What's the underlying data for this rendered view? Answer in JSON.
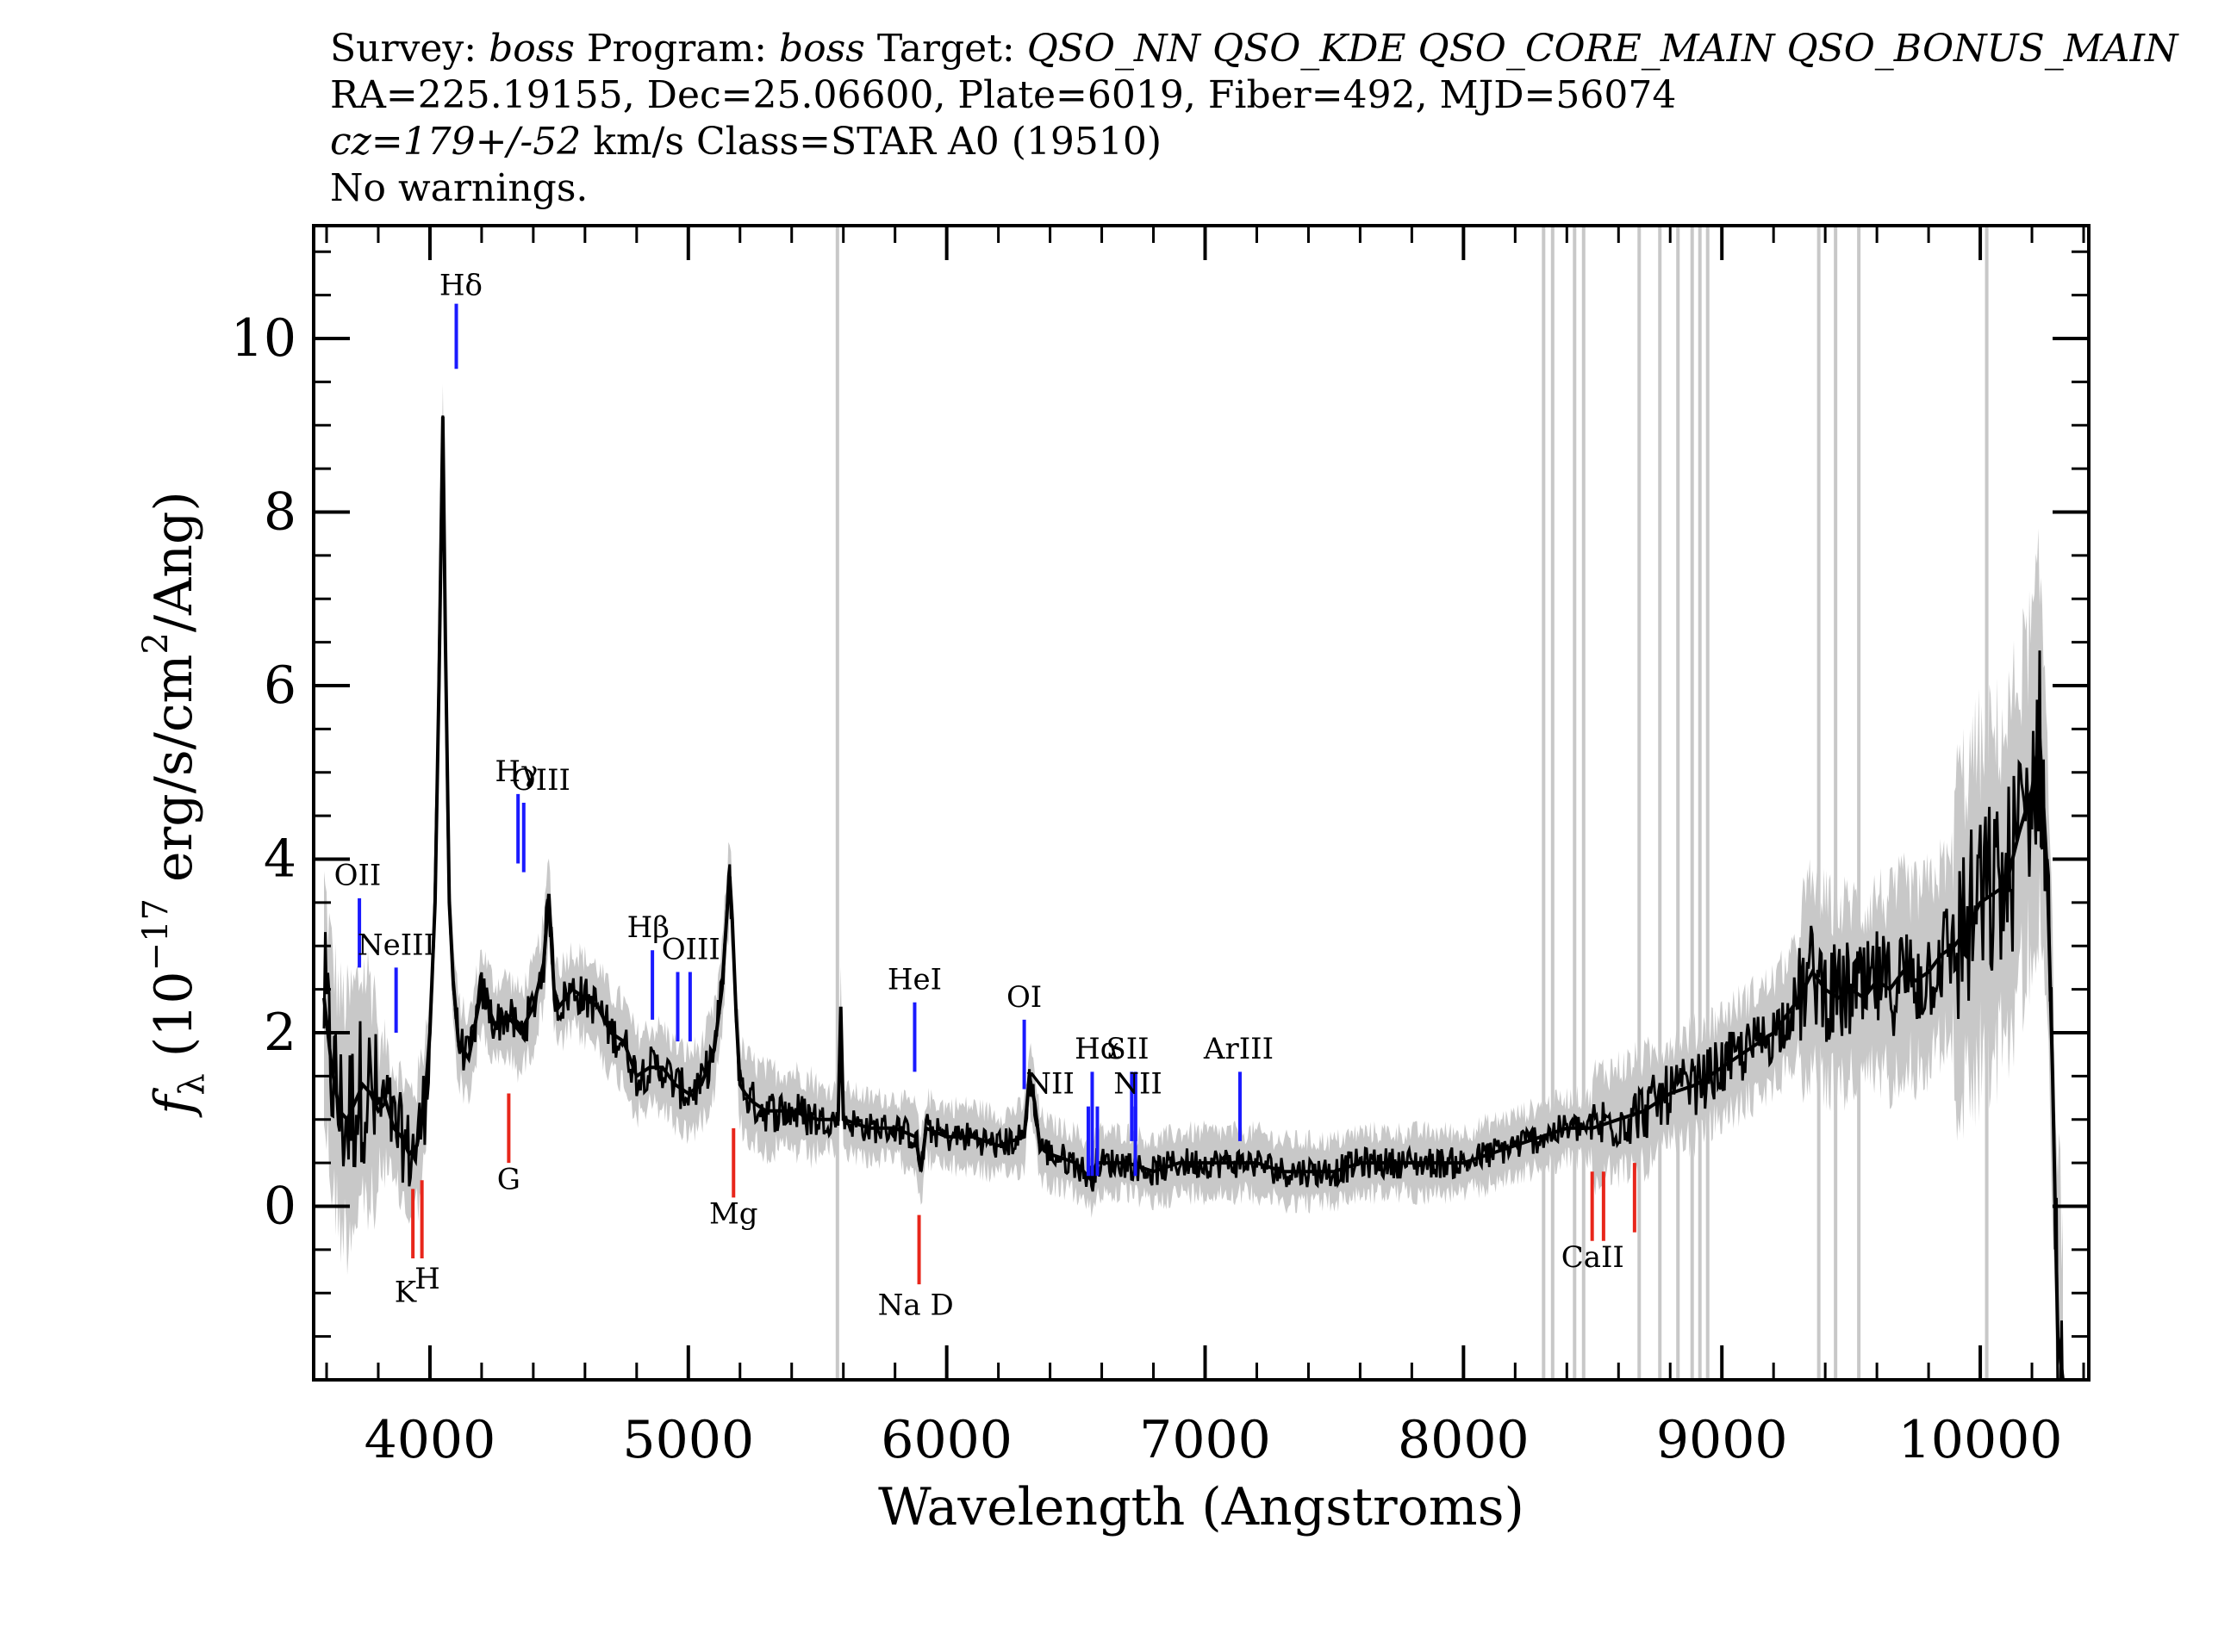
{
  "header": {
    "line1": [
      {
        "text": "Survey: ",
        "italic": false
      },
      {
        "text": "boss",
        "italic": true
      },
      {
        "text": " Program: ",
        "italic": false
      },
      {
        "text": "boss",
        "italic": true
      },
      {
        "text": " Target: ",
        "italic": false
      },
      {
        "text": "QSO_NN QSO_KDE QSO_CORE_MAIN QSO_BONUS_MAIN",
        "italic": true
      }
    ],
    "line2": "RA=225.19155, Dec=25.06600, Plate=6019, Fiber=492, MJD=56074",
    "line3": [
      {
        "text": "cz=179+/-52",
        "italic": true
      },
      {
        "text": " km/s Class=STAR A0 (19510)",
        "italic": false
      }
    ],
    "line4": "No warnings."
  },
  "chart_data": {
    "type": "line",
    "xlabel": "Wavelength (Angstroms)",
    "ylabel_parts": {
      "f": "f",
      "lambda": "λ",
      "open": " (10",
      "exp": "−17",
      "mid": " erg/s/cm",
      "sq": "2",
      "close": "/Ang)"
    },
    "xlim": [
      3550,
      10420
    ],
    "ylim": [
      -2.0,
      11.3
    ],
    "xticks": [
      4000,
      5000,
      6000,
      7000,
      8000,
      9000,
      10000
    ],
    "xtick_labels": [
      "4000",
      "5000",
      "6000",
      "7000",
      "8000",
      "9000",
      "10000"
    ],
    "yticks": [
      0,
      2,
      4,
      6,
      8,
      10
    ],
    "ytick_labels": [
      "0",
      "2",
      "4",
      "6",
      "8",
      "10"
    ],
    "grid": false,
    "colors": {
      "flux": "#000000",
      "error": "#c8c8c8",
      "emission": "#1a1aff",
      "absorption": "#e8261b",
      "text": "#000000"
    },
    "series": [
      {
        "role": "smoothed flux",
        "x": [
          3590,
          3620,
          3650,
          3680,
          3710,
          3740,
          3770,
          3800,
          3830,
          3860,
          3890,
          3920,
          3950,
          3980,
          4000,
          4020,
          4035,
          4050,
          4060,
          4075,
          4090,
          4110,
          4150,
          4200,
          4250,
          4300,
          4350,
          4400,
          4440,
          4460,
          4480,
          4500,
          4550,
          4600,
          4650,
          4700,
          4750,
          4800,
          4850,
          4900,
          4950,
          5000,
          5050,
          5100,
          5130,
          5150,
          5160,
          5170,
          5185,
          5200,
          5220,
          5250,
          5300,
          5400,
          5500,
          5580,
          5590,
          5600,
          5700,
          5800,
          5880,
          5900,
          5920,
          6000,
          6100,
          6200,
          6300,
          6320,
          6340,
          6360,
          6400,
          6500,
          6560,
          6580,
          6600,
          6700,
          6800,
          6900,
          7000,
          7100,
          7200,
          7300,
          7400,
          7500,
          7600,
          7700,
          7800,
          7900,
          8000,
          8100,
          8200,
          8300,
          8400,
          8500,
          8600,
          8700,
          8800,
          8900,
          9000,
          9100,
          9200,
          9250,
          9300,
          9350,
          9400,
          9450,
          9500,
          9550,
          9600,
          9650,
          9700,
          9750,
          9800,
          9850,
          9900,
          9950,
          10000,
          10050,
          10100,
          10150,
          10200,
          10230,
          10260,
          10280,
          10300,
          10320
        ],
        "y": [
          2.4,
          1.6,
          1.1,
          1.0,
          1.2,
          1.4,
          1.3,
          1.1,
          1.2,
          0.9,
          0.8,
          0.6,
          0.7,
          1.2,
          2.0,
          3.5,
          6.0,
          9.1,
          6.5,
          3.5,
          2.6,
          1.9,
          1.7,
          2.5,
          2.1,
          2.2,
          2.0,
          2.3,
          2.8,
          3.6,
          2.5,
          2.3,
          2.5,
          2.4,
          2.3,
          2.0,
          1.9,
          1.5,
          1.6,
          1.6,
          1.4,
          1.3,
          1.4,
          1.8,
          2.5,
          3.4,
          3.8,
          3.3,
          2.2,
          1.4,
          1.3,
          1.2,
          1.1,
          1.1,
          1.0,
          1.0,
          2.3,
          1.0,
          0.9,
          0.9,
          0.8,
          0.4,
          0.9,
          0.8,
          0.8,
          0.7,
          0.8,
          1.5,
          1.2,
          0.7,
          0.6,
          0.5,
          0.3,
          0.5,
          0.5,
          0.5,
          0.4,
          0.5,
          0.5,
          0.5,
          0.5,
          0.4,
          0.4,
          0.4,
          0.5,
          0.5,
          0.5,
          0.5,
          0.5,
          0.6,
          0.7,
          0.8,
          0.9,
          0.9,
          1.0,
          1.1,
          1.3,
          1.4,
          1.6,
          1.8,
          2.0,
          2.2,
          2.4,
          2.7,
          2.5,
          2.4,
          2.5,
          2.4,
          2.6,
          2.5,
          2.7,
          2.6,
          2.7,
          2.9,
          3.0,
          3.2,
          3.5,
          3.6,
          3.7,
          4.3,
          4.8,
          5.4,
          3.8,
          1.5,
          -1.5,
          -2.0
        ]
      }
    ],
    "masked_x": [
      5577,
      8310,
      8345,
      8430,
      8465,
      8680,
      8760,
      8830,
      8885,
      8915,
      8945,
      9375,
      9440,
      9530,
      10025
    ],
    "annotations": [
      {
        "label": "Hδ",
        "x": 4102,
        "kind": "emission",
        "y0": 9.65,
        "y1": 10.4,
        "lx": 4120,
        "ly": 10.5
      },
      {
        "label": "Hγ",
        "x": 4341,
        "kind": "emission",
        "y0": 3.95,
        "y1": 4.75,
        "lx": 4335,
        "ly": 4.9
      },
      {
        "label": "OIII",
        "x": 4363,
        "kind": "emission",
        "y0": 3.85,
        "y1": 4.65,
        "lx": 4430,
        "ly": 4.8
      },
      {
        "label": "OII",
        "x": 3727,
        "kind": "emission",
        "y0": 2.75,
        "y1": 3.55,
        "lx": 3720,
        "ly": 3.7
      },
      {
        "label": "NeIII",
        "x": 3869,
        "kind": "emission",
        "y0": 2.0,
        "y1": 2.75,
        "lx": 3870,
        "ly": 2.9
      },
      {
        "label": "Hβ",
        "x": 4861,
        "kind": "emission",
        "y0": 2.15,
        "y1": 2.95,
        "lx": 4845,
        "ly": 3.1
      },
      {
        "label": "OIII",
        "x": 4959,
        "kind": "emission",
        "y0": 1.9,
        "y1": 2.7,
        "lx": 5010,
        "ly": 2.85
      },
      {
        "label": "OIII",
        "x": 5007,
        "kind": "emission",
        "y0": 1.9,
        "y1": 2.7,
        "lx": "",
        "ly": ""
      },
      {
        "label": "HeI",
        "x": 5876,
        "kind": "emission",
        "y0": 1.55,
        "y1": 2.35,
        "lx": 5876,
        "ly": 2.5
      },
      {
        "label": "OI",
        "x": 6300,
        "kind": "emission",
        "y0": 1.35,
        "y1": 2.15,
        "lx": 6300,
        "ly": 2.3
      },
      {
        "label": "NII",
        "x": 6548,
        "kind": "emission",
        "y0": 0.35,
        "y1": 1.15,
        "lx": 6400,
        "ly": 1.3
      },
      {
        "label": "Hα",
        "x": 6563,
        "kind": "emission",
        "y0": 0.35,
        "y1": 1.55,
        "lx": 6583,
        "ly": 1.7
      },
      {
        "label": "NII",
        "x": 6583,
        "kind": "emission",
        "y0": 0.35,
        "y1": 1.15,
        "lx": "",
        "ly": ""
      },
      {
        "label": "SII",
        "x": 6716,
        "kind": "emission",
        "y0": 0.75,
        "y1": 1.55,
        "lx": 6700,
        "ly": 1.7
      },
      {
        "label": "SII",
        "x": 6731,
        "kind": "emission",
        "y0": 0.75,
        "y1": 1.55,
        "lx": "",
        "ly": ""
      },
      {
        "label": "NII",
        "x": 6730,
        "kind": "emission",
        "y0": 0.35,
        "y1": 1.15,
        "lx": 6740,
        "ly": 1.3
      },
      {
        "label": "ArIII",
        "x": 7135,
        "kind": "emission",
        "y0": 0.75,
        "y1": 1.55,
        "lx": 7130,
        "ly": 1.7
      },
      {
        "label": "K",
        "x": 3934,
        "kind": "absorption",
        "y0": -0.6,
        "y1": 0.2,
        "lx": 3905,
        "ly": -1.1
      },
      {
        "label": "H",
        "x": 3969,
        "kind": "absorption",
        "y0": -0.6,
        "y1": 0.3,
        "lx": 3990,
        "ly": -0.95
      },
      {
        "label": "G",
        "x": 4305,
        "kind": "absorption",
        "y0": 0.5,
        "y1": 1.3,
        "lx": 4305,
        "ly": 0.2
      },
      {
        "label": "Mg",
        "x": 5175,
        "kind": "absorption",
        "y0": 0.1,
        "y1": 0.9,
        "lx": 5175,
        "ly": -0.2
      },
      {
        "label": "Na D",
        "x": 5893,
        "kind": "absorption",
        "y0": -0.9,
        "y1": -0.1,
        "lx": 5880,
        "ly": -1.25
      },
      {
        "label": "CaII",
        "x": 8498,
        "kind": "absorption",
        "y0": -0.4,
        "y1": 0.4,
        "lx": 8500,
        "ly": -0.7
      },
      {
        "label": "",
        "x": 8542,
        "kind": "absorption",
        "y0": -0.4,
        "y1": 0.4,
        "lx": "",
        "ly": ""
      },
      {
        "label": "",
        "x": 8662,
        "kind": "absorption",
        "y0": -0.3,
        "y1": 0.5,
        "lx": "",
        "ly": ""
      }
    ]
  }
}
